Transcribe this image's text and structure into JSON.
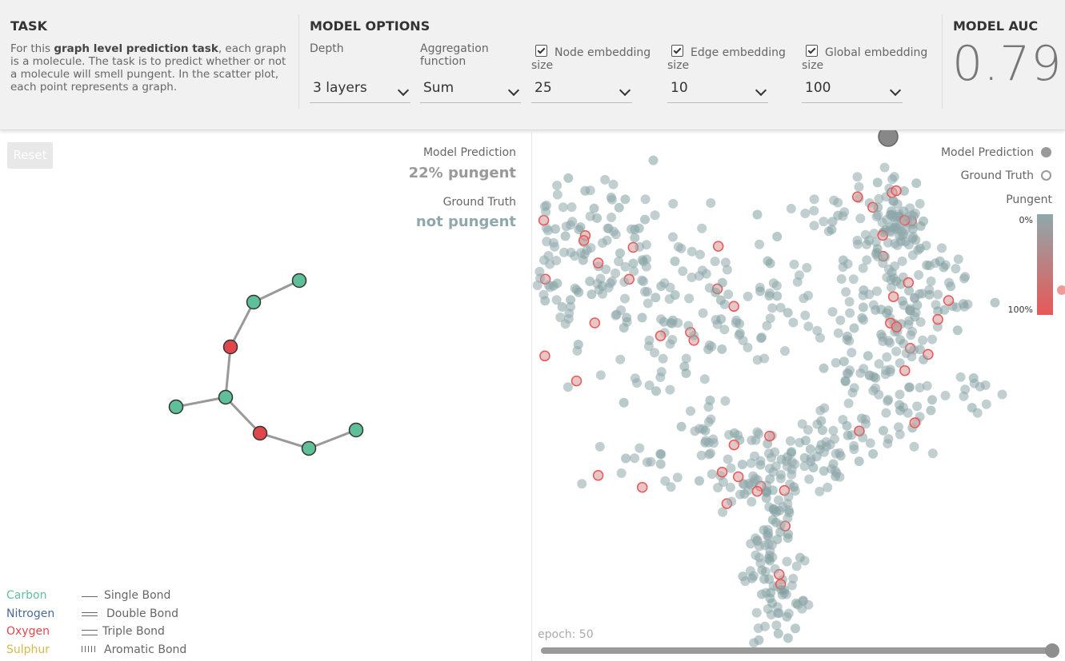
{
  "task": {
    "title": "TASK",
    "text_pre": "For this ",
    "text_bold": "graph level prediction task",
    "text_post": ", each graph is a molecule. The task is to predict whether or not a molecule will smell pungent. In the scatter plot, each point represents a graph."
  },
  "options": {
    "title": "MODEL OPTIONS",
    "depth": {
      "label": "Depth",
      "value": "3 layers"
    },
    "aggregation": {
      "label": "Aggregation function",
      "value": "Sum"
    },
    "node": {
      "label": "Node embedding size",
      "value": "25",
      "checked": true
    },
    "edge": {
      "label": "Edge embedding size",
      "value": "10",
      "checked": true
    },
    "global": {
      "label": "Global embedding size",
      "value": "100",
      "checked": true
    }
  },
  "auc": {
    "title": "MODEL AUC",
    "value": "0.79"
  },
  "graph_panel": {
    "reset_label": "Reset",
    "prediction_label": "Model Prediction",
    "prediction_value": "22% pungent",
    "truth_label": "Ground Truth",
    "truth_value": "not pungent",
    "atoms": [
      {
        "element": "carbon"
      },
      {
        "element": "carbon"
      },
      {
        "element": "oxygen"
      },
      {
        "element": "carbon"
      },
      {
        "element": "carbon"
      },
      {
        "element": "oxygen"
      },
      {
        "element": "carbon"
      },
      {
        "element": "carbon"
      }
    ]
  },
  "legend": {
    "atoms": [
      {
        "label": "Carbon",
        "color": "#5fbf98"
      },
      {
        "label": "Nitrogen",
        "color": "#4a6a9a"
      },
      {
        "label": "Oxygen",
        "color": "#e0474c"
      },
      {
        "label": "Sulphur",
        "color": "#d7b84a"
      }
    ],
    "bonds": [
      "Single Bond",
      "Double Bond",
      "Triple Bond",
      "Aromatic Bond"
    ]
  },
  "scatter": {
    "legend_prediction": "Model Prediction",
    "legend_truth": "Ground Truth",
    "scale_title": "Pungent",
    "scale_min": "0%",
    "scale_max": "100%",
    "color_not_pungent": "#8fa8ab",
    "color_pungent": "#e85858",
    "epoch_label": "epoch: 50",
    "epoch": 50
  }
}
